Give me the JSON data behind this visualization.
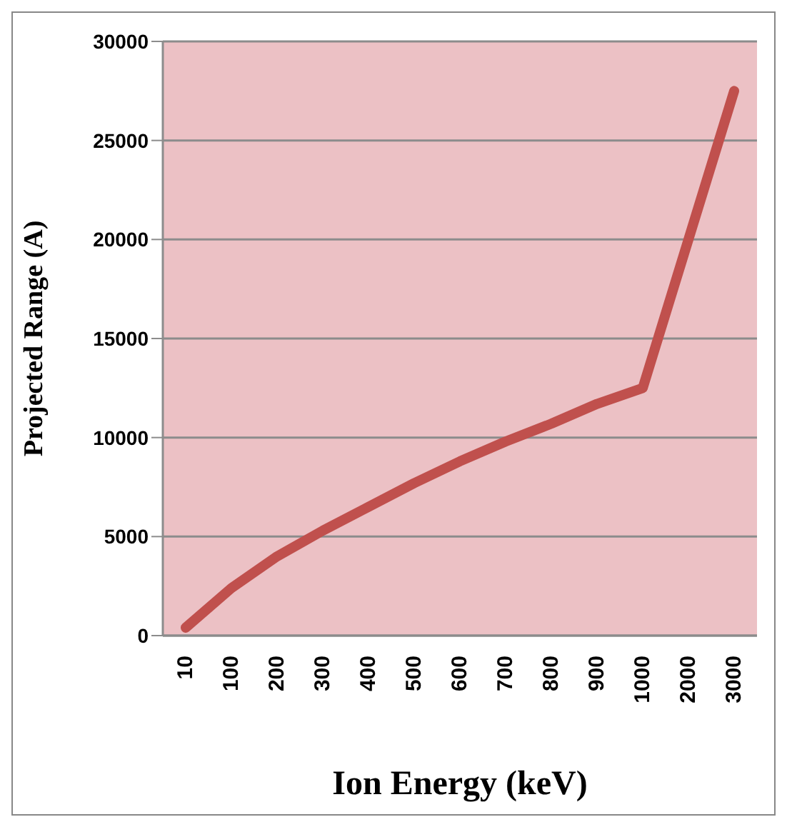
{
  "chart_data": {
    "type": "line",
    "xlabel": "Ion Energy (keV)",
    "ylabel": "Projected Range (A)",
    "categories": [
      "10",
      "100",
      "200",
      "300",
      "400",
      "500",
      "600",
      "700",
      "800",
      "900",
      "1000",
      "2000",
      "3000"
    ],
    "series": [
      {
        "color": "#c0504d",
        "values": [
          400,
          2400,
          4000,
          5300,
          6500,
          7700,
          8800,
          9800,
          10700,
          11700,
          12500,
          20000,
          27500
        ]
      }
    ],
    "ylim": [
      0,
      30000
    ],
    "yticks": [
      0,
      5000,
      10000,
      15000,
      20000,
      25000,
      30000
    ],
    "grid": "y",
    "legend": false,
    "marker": "none",
    "line_style": "solid"
  }
}
